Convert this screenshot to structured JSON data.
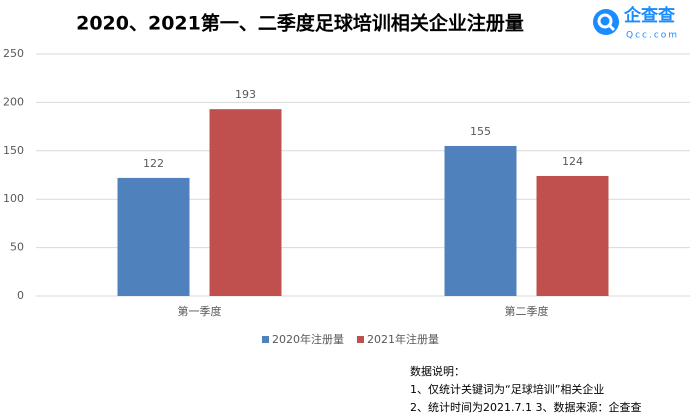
{
  "chart_data": {
    "type": "bar",
    "title": "2020、2021第一、二季度足球培训相关企业注册量",
    "categories": [
      "第一季度",
      "第二季度"
    ],
    "series": [
      {
        "name": "2020年注册量",
        "color": "#4f81bd",
        "values": [
          122,
          155
        ]
      },
      {
        "name": "2021年注册量",
        "color": "#c0504d",
        "values": [
          193,
          124
        ]
      }
    ],
    "ylim": [
      0,
      250
    ],
    "yticks": [
      0,
      50,
      100,
      150,
      200,
      250
    ],
    "grid": true
  },
  "logo": {
    "name": "企查查",
    "domain": "Qcc.com"
  },
  "notes": {
    "heading": "数据说明：",
    "lines": [
      "1、仅统计关键词为“足球培训”相关企业",
      "2、统计时间为2021.7.1   3、数据来源：企查查"
    ]
  }
}
